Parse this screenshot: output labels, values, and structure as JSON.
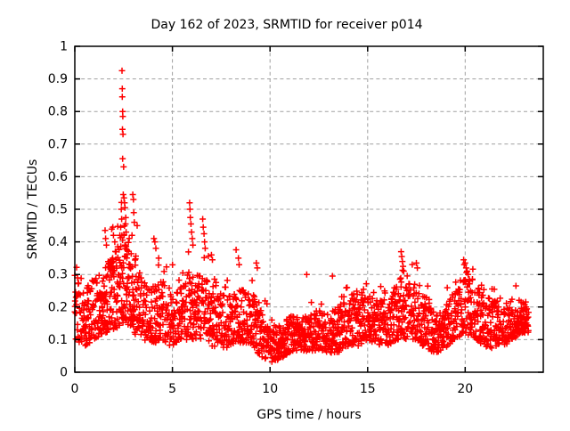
{
  "chart_data": {
    "type": "scatter",
    "title": "Day 162 of 2023, SRMTID for receiver p014",
    "xlabel": "GPS time / hours",
    "ylabel": "SRMTID / TECUs",
    "xlim": [
      0,
      24
    ],
    "ylim": [
      0,
      1
    ],
    "xticks": [
      0,
      5,
      10,
      15,
      20
    ],
    "yticks": [
      0,
      0.1,
      0.2,
      0.3,
      0.4,
      0.5,
      0.6,
      0.7,
      0.8,
      0.9,
      1
    ],
    "grid": true,
    "legend": "none",
    "marker": "plus",
    "marker_color": "#ff0000",
    "grid_color": "#a0a0a0",
    "axis_color": "#000000",
    "background_color": "#ffffff",
    "x_data_range": [
      0,
      23.25
    ],
    "seed": 20230162,
    "envelope_comment": "keyframes [hour, band_low, band_high, spike_max] read from the plot; dense noisy band with structured spikes",
    "envelope": [
      [
        0.0,
        0.1,
        0.3,
        0.33
      ],
      [
        0.5,
        0.08,
        0.25,
        0.29
      ],
      [
        1.0,
        0.1,
        0.28,
        0.33
      ],
      [
        1.5,
        0.12,
        0.33,
        0.44
      ],
      [
        2.0,
        0.13,
        0.37,
        0.46
      ],
      [
        2.5,
        0.15,
        0.44,
        0.55
      ],
      [
        3.0,
        0.12,
        0.36,
        0.53
      ],
      [
        3.5,
        0.1,
        0.28,
        0.36
      ],
      [
        4.0,
        0.09,
        0.26,
        0.4
      ],
      [
        4.5,
        0.09,
        0.28,
        0.38
      ],
      [
        5.0,
        0.08,
        0.24,
        0.33
      ],
      [
        5.5,
        0.1,
        0.26,
        0.34
      ],
      [
        6.0,
        0.1,
        0.3,
        0.5
      ],
      [
        6.5,
        0.1,
        0.3,
        0.46
      ],
      [
        7.0,
        0.08,
        0.26,
        0.38
      ],
      [
        7.5,
        0.07,
        0.24,
        0.31
      ],
      [
        8.0,
        0.08,
        0.26,
        0.35
      ],
      [
        8.5,
        0.09,
        0.27,
        0.42
      ],
      [
        9.0,
        0.09,
        0.26,
        0.34
      ],
      [
        9.5,
        0.05,
        0.2,
        0.28
      ],
      [
        10.0,
        0.03,
        0.13,
        0.18
      ],
      [
        10.5,
        0.04,
        0.15,
        0.2
      ],
      [
        11.0,
        0.06,
        0.17,
        0.24
      ],
      [
        11.5,
        0.07,
        0.19,
        0.28
      ],
      [
        12.0,
        0.06,
        0.17,
        0.24
      ],
      [
        12.5,
        0.07,
        0.2,
        0.3
      ],
      [
        13.0,
        0.06,
        0.18,
        0.26
      ],
      [
        13.5,
        0.06,
        0.2,
        0.28
      ],
      [
        14.0,
        0.08,
        0.23,
        0.3
      ],
      [
        14.5,
        0.08,
        0.25,
        0.31
      ],
      [
        15.0,
        0.1,
        0.24,
        0.3
      ],
      [
        15.5,
        0.08,
        0.22,
        0.28
      ],
      [
        16.0,
        0.08,
        0.25,
        0.31
      ],
      [
        16.5,
        0.1,
        0.28,
        0.36
      ],
      [
        17.0,
        0.1,
        0.3,
        0.37
      ],
      [
        17.5,
        0.1,
        0.28,
        0.34
      ],
      [
        18.0,
        0.07,
        0.24,
        0.29
      ],
      [
        18.5,
        0.06,
        0.18,
        0.24
      ],
      [
        19.0,
        0.07,
        0.2,
        0.26
      ],
      [
        19.5,
        0.1,
        0.26,
        0.32
      ],
      [
        20.0,
        0.12,
        0.31,
        0.36
      ],
      [
        20.5,
        0.1,
        0.28,
        0.33
      ],
      [
        21.0,
        0.08,
        0.24,
        0.3
      ],
      [
        21.5,
        0.07,
        0.22,
        0.28
      ],
      [
        22.0,
        0.08,
        0.2,
        0.26
      ],
      [
        22.5,
        0.1,
        0.19,
        0.24
      ],
      [
        23.0,
        0.12,
        0.2,
        0.22
      ]
    ],
    "outliers_comment": "explicit notable high points [hour, TECUs] read from the plot",
    "outliers": [
      [
        2.42,
        0.925
      ],
      [
        2.43,
        0.87
      ],
      [
        2.43,
        0.845
      ],
      [
        2.45,
        0.8
      ],
      [
        2.46,
        0.785
      ],
      [
        2.44,
        0.745
      ],
      [
        2.47,
        0.73
      ],
      [
        2.45,
        0.655
      ],
      [
        2.5,
        0.63
      ],
      [
        2.48,
        0.545
      ],
      [
        2.52,
        0.535
      ],
      [
        2.55,
        0.52
      ],
      [
        2.57,
        0.505
      ],
      [
        2.38,
        0.5
      ],
      [
        2.4,
        0.47
      ],
      [
        2.6,
        0.455
      ],
      [
        2.35,
        0.445
      ],
      [
        2.63,
        0.43
      ],
      [
        2.97,
        0.545
      ],
      [
        3.0,
        0.53
      ],
      [
        3.02,
        0.49
      ],
      [
        3.05,
        0.46
      ],
      [
        2.93,
        0.42
      ],
      [
        1.55,
        0.435
      ],
      [
        1.58,
        0.41
      ],
      [
        1.62,
        0.39
      ],
      [
        1.95,
        0.445
      ],
      [
        1.98,
        0.42
      ],
      [
        2.05,
        0.4
      ],
      [
        2.2,
        0.385
      ],
      [
        4.05,
        0.41
      ],
      [
        4.1,
        0.4
      ],
      [
        4.15,
        0.38
      ],
      [
        4.3,
        0.35
      ],
      [
        5.88,
        0.52
      ],
      [
        5.9,
        0.5
      ],
      [
        5.92,
        0.475
      ],
      [
        5.95,
        0.455
      ],
      [
        5.98,
        0.43
      ],
      [
        6.02,
        0.41
      ],
      [
        6.05,
        0.39
      ],
      [
        6.55,
        0.47
      ],
      [
        6.58,
        0.445
      ],
      [
        6.62,
        0.425
      ],
      [
        6.65,
        0.4
      ],
      [
        6.68,
        0.38
      ],
      [
        7.0,
        0.36
      ],
      [
        7.05,
        0.345
      ],
      [
        8.38,
        0.35
      ],
      [
        8.42,
        0.33
      ],
      [
        9.3,
        0.335
      ],
      [
        9.35,
        0.32
      ],
      [
        11.88,
        0.3
      ],
      [
        13.2,
        0.295
      ],
      [
        16.72,
        0.37
      ],
      [
        16.75,
        0.355
      ],
      [
        16.78,
        0.34
      ],
      [
        16.82,
        0.325
      ],
      [
        16.85,
        0.31
      ],
      [
        17.5,
        0.335
      ],
      [
        17.55,
        0.32
      ],
      [
        19.92,
        0.345
      ],
      [
        19.95,
        0.33
      ],
      [
        20.0,
        0.335
      ],
      [
        20.05,
        0.32
      ],
      [
        20.1,
        0.31
      ],
      [
        20.15,
        0.3
      ],
      [
        22.6,
        0.265
      ]
    ]
  }
}
